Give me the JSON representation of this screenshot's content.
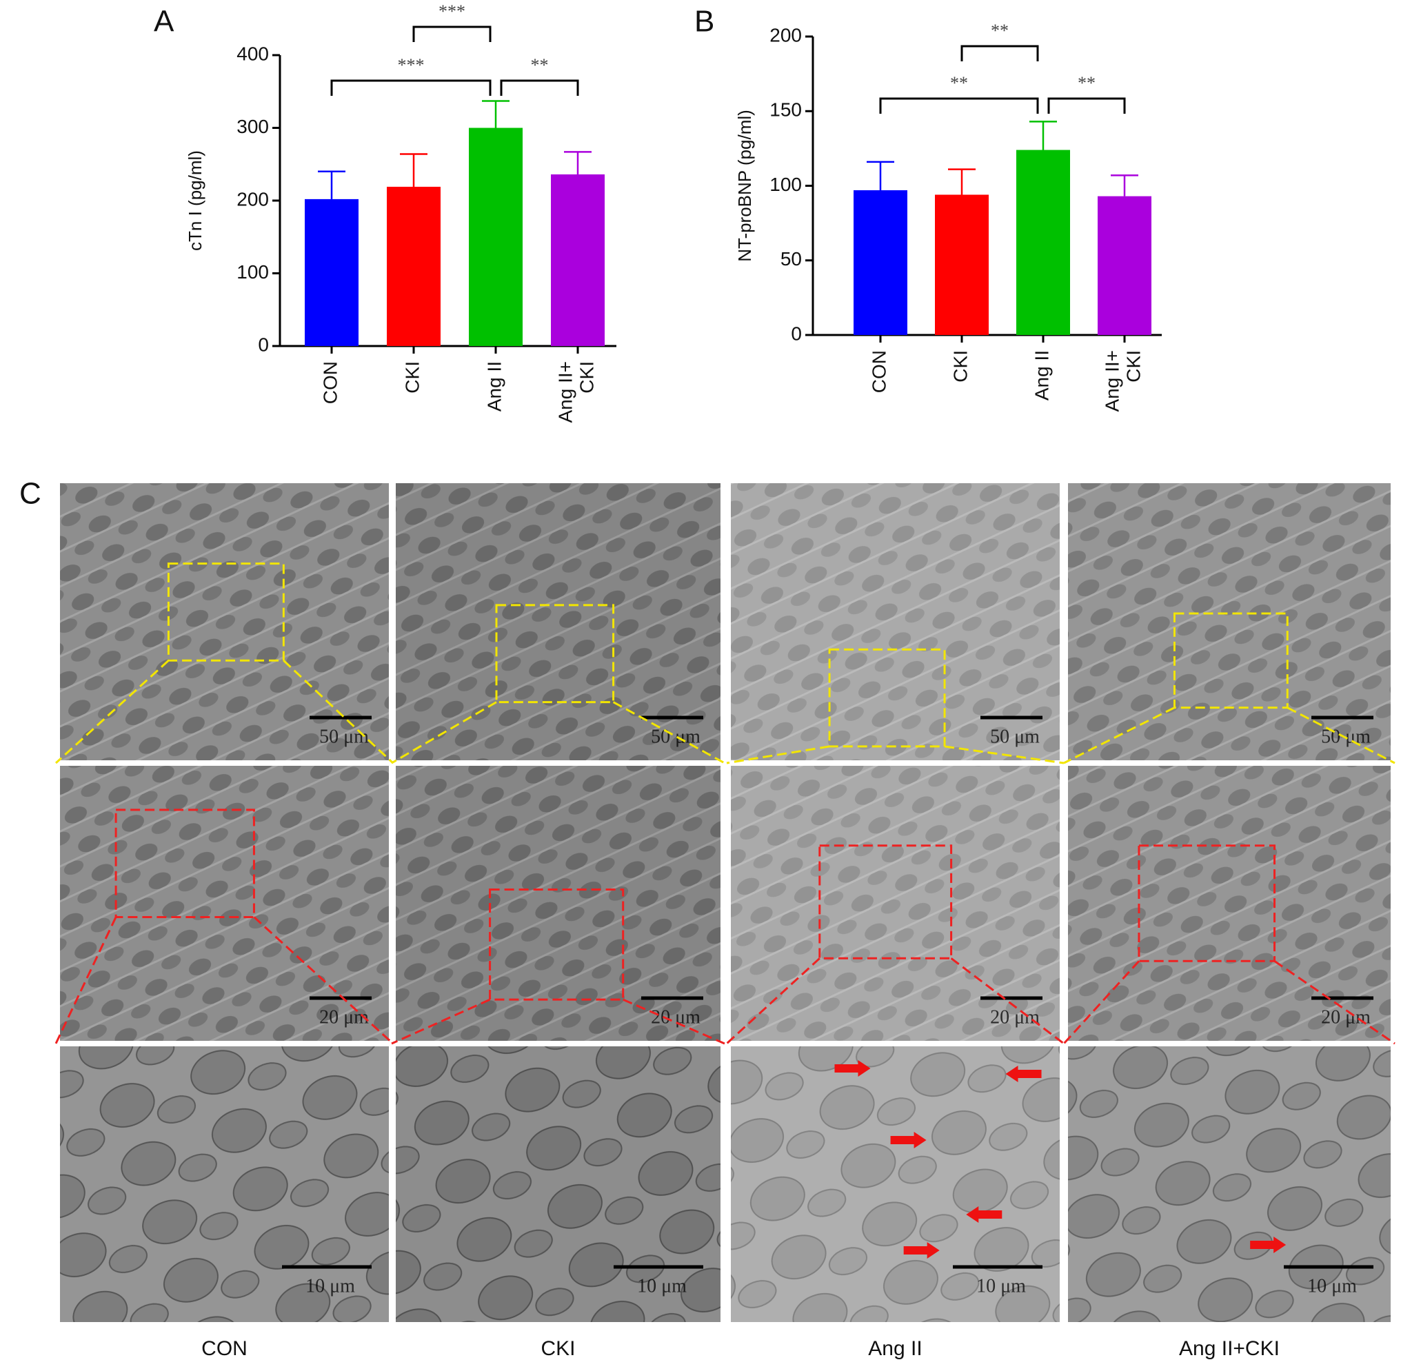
{
  "panel_labels": [
    "A",
    "B",
    "C"
  ],
  "chart_data": [
    {
      "type": "bar",
      "ylabel": "cTn I (pg/ml)",
      "categories": [
        "CON",
        "CKI",
        "Ang II",
        "Ang II+\nCKI"
      ],
      "values": [
        202,
        219,
        300,
        236
      ],
      "errors": [
        38,
        45,
        37,
        31
      ],
      "colors": [
        "#0000ff",
        "#ff0000",
        "#00c000",
        "#aa00dd"
      ],
      "ylim": [
        0,
        400
      ],
      "yticks": [
        0,
        100,
        200,
        300,
        400
      ],
      "comparisons": [
        {
          "between": [
            1,
            2
          ],
          "label": "***"
        },
        {
          "between": [
            0,
            2
          ],
          "label": "***"
        },
        {
          "between": [
            2,
            3
          ],
          "label": "**"
        }
      ]
    },
    {
      "type": "bar",
      "ylabel": "NT-proBNP (pg/ml)",
      "categories": [
        "CON",
        "CKI",
        "Ang II",
        "Ang II+\nCKI"
      ],
      "values": [
        97,
        94,
        124,
        93
      ],
      "errors": [
        19,
        17,
        19,
        14
      ],
      "colors": [
        "#0000ff",
        "#ff0000",
        "#00c000",
        "#aa00dd"
      ],
      "ylim": [
        0,
        200
      ],
      "yticks": [
        0,
        50,
        100,
        150,
        200
      ],
      "comparisons": [
        {
          "between": [
            1,
            2
          ],
          "label": "**"
        },
        {
          "between": [
            0,
            2
          ],
          "label": "**"
        },
        {
          "between": [
            2,
            3
          ],
          "label": "**"
        }
      ]
    }
  ],
  "micrographs": {
    "columns": [
      "CON",
      "CKI",
      "Ang II",
      "Ang II+CKI"
    ],
    "scale_bars": [
      "50 μm",
      "20 μm",
      "10 μm"
    ]
  }
}
